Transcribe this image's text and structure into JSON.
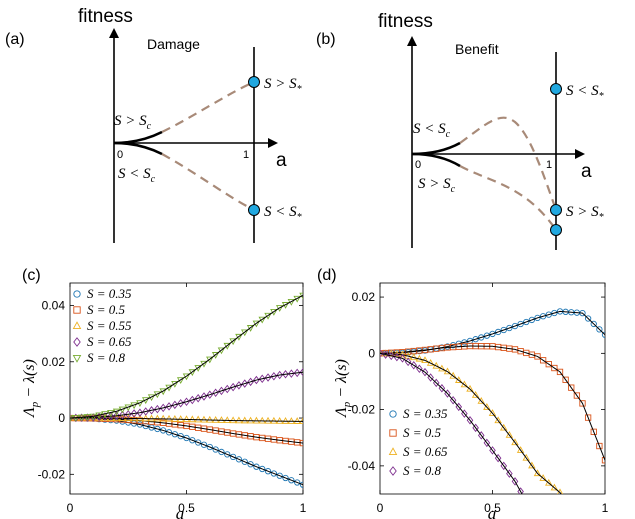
{
  "chart_data": [
    {
      "panel": "(a)",
      "type": "line",
      "ylabel": "fitness",
      "xlabel": "a",
      "title": "Damage",
      "x_ticks": [
        "0",
        "1"
      ],
      "annotations": [
        "S > S_c",
        "S < S_c",
        "S > S_*",
        "S < S_*"
      ]
    },
    {
      "panel": "(b)",
      "type": "line",
      "ylabel": "fitness",
      "xlabel": "a",
      "title": "Benefit",
      "x_ticks": [
        "0",
        "1"
      ],
      "annotations": [
        "S < S_c",
        "S > S_c",
        "S < S_*",
        "S > S_*"
      ]
    },
    {
      "panel": "(c)",
      "type": "line",
      "xlabel": "a",
      "ylabel": "Λ_p − λ(s)",
      "xlim": [
        0,
        1
      ],
      "ylim": [
        -0.027,
        0.048
      ],
      "xticks": [
        0,
        0.5,
        1
      ],
      "yticks": [
        -0.02,
        0,
        0.02,
        0.04
      ],
      "legend_position": "top-left",
      "series": [
        {
          "name": "S = 0.35",
          "marker": "circle",
          "color": "#1f77b4",
          "x": [
            0,
            0.1,
            0.2,
            0.3,
            0.4,
            0.5,
            0.6,
            0.7,
            0.8,
            0.9,
            1.0
          ],
          "values": [
            0,
            -0.0002,
            -0.0009,
            -0.0023,
            -0.0044,
            -0.0071,
            -0.0103,
            -0.0138,
            -0.0173,
            -0.0205,
            -0.0237
          ]
        },
        {
          "name": "S = 0.5",
          "marker": "square",
          "color": "#d95319",
          "x": [
            0,
            0.1,
            0.2,
            0.3,
            0.4,
            0.5,
            0.6,
            0.7,
            0.8,
            0.9,
            1.0
          ],
          "values": [
            0,
            -0.0001,
            -0.0004,
            -0.0009,
            -0.0017,
            -0.0028,
            -0.0041,
            -0.0055,
            -0.0068,
            -0.0079,
            -0.0089
          ]
        },
        {
          "name": "S = 0.55",
          "marker": "triangle-up",
          "color": "#edb120",
          "x": [
            0,
            0.1,
            0.2,
            0.3,
            0.4,
            0.5,
            0.6,
            0.7,
            0.8,
            0.9,
            1.0
          ],
          "values": [
            0,
            0,
            -0.0001,
            -0.0002,
            -0.0003,
            -0.0005,
            -0.0007,
            -0.0009,
            -0.001,
            -0.0011,
            -0.0012
          ]
        },
        {
          "name": "S = 0.65",
          "marker": "diamond",
          "color": "#7e2f8e",
          "x": [
            0,
            0.1,
            0.2,
            0.3,
            0.4,
            0.5,
            0.6,
            0.7,
            0.8,
            0.9,
            1.0
          ],
          "values": [
            0,
            0.0002,
            0.0008,
            0.0019,
            0.0036,
            0.0058,
            0.0083,
            0.011,
            0.0135,
            0.0153,
            0.0163
          ]
        },
        {
          "name": "S = 0.8",
          "marker": "triangle-down",
          "color": "#77ac30",
          "x": [
            0,
            0.1,
            0.2,
            0.3,
            0.4,
            0.5,
            0.6,
            0.7,
            0.8,
            0.9,
            1.0
          ],
          "values": [
            0,
            0.0006,
            0.0024,
            0.0054,
            0.0096,
            0.0149,
            0.0209,
            0.0274,
            0.0337,
            0.0392,
            0.0436
          ]
        }
      ]
    },
    {
      "panel": "(d)",
      "type": "line",
      "xlabel": "a",
      "ylabel": "Λ_p − λ(s)",
      "xlim": [
        0,
        1
      ],
      "ylim": [
        -0.05,
        0.025
      ],
      "xticks": [
        0,
        0.5,
        1
      ],
      "yticks": [
        -0.04,
        -0.02,
        0,
        0.02
      ],
      "legend_position": "bottom-left",
      "series": [
        {
          "name": "S = 0.35",
          "marker": "circle",
          "color": "#1f77b4",
          "x": [
            0,
            0.1,
            0.2,
            0.3,
            0.4,
            0.5,
            0.6,
            0.7,
            0.8,
            0.9,
            1.0
          ],
          "values": [
            0,
            0.0002,
            0.001,
            0.0024,
            0.0044,
            0.0069,
            0.0097,
            0.0126,
            0.0149,
            0.0143,
            0.0066
          ]
        },
        {
          "name": "S = 0.5",
          "marker": "square",
          "color": "#d95319",
          "x": [
            0,
            0.1,
            0.2,
            0.3,
            0.4,
            0.5,
            0.6,
            0.7,
            0.8,
            0.9,
            1.0
          ],
          "values": [
            0,
            0.0004,
            0.0012,
            0.0021,
            0.0026,
            0.0025,
            0.0014,
            -0.0011,
            -0.0066,
            -0.0178,
            -0.038
          ]
        },
        {
          "name": "S = 0.65",
          "marker": "triangle-up",
          "color": "#edb120",
          "x": [
            0,
            0.1,
            0.2,
            0.3,
            0.4,
            0.5,
            0.6,
            0.7,
            0.8,
            0.9
          ],
          "values": [
            0,
            -0.0005,
            -0.0025,
            -0.0065,
            -0.0127,
            -0.0213,
            -0.0317,
            -0.0427,
            -0.0495,
            -0.06
          ]
        },
        {
          "name": "S = 0.8",
          "marker": "diamond",
          "color": "#7e2f8e",
          "x": [
            0,
            0.1,
            0.2,
            0.3,
            0.4,
            0.5,
            0.6,
            0.7
          ],
          "values": [
            0,
            -0.0018,
            -0.0067,
            -0.0143,
            -0.0238,
            -0.0345,
            -0.0455,
            -0.06
          ]
        }
      ]
    }
  ]
}
